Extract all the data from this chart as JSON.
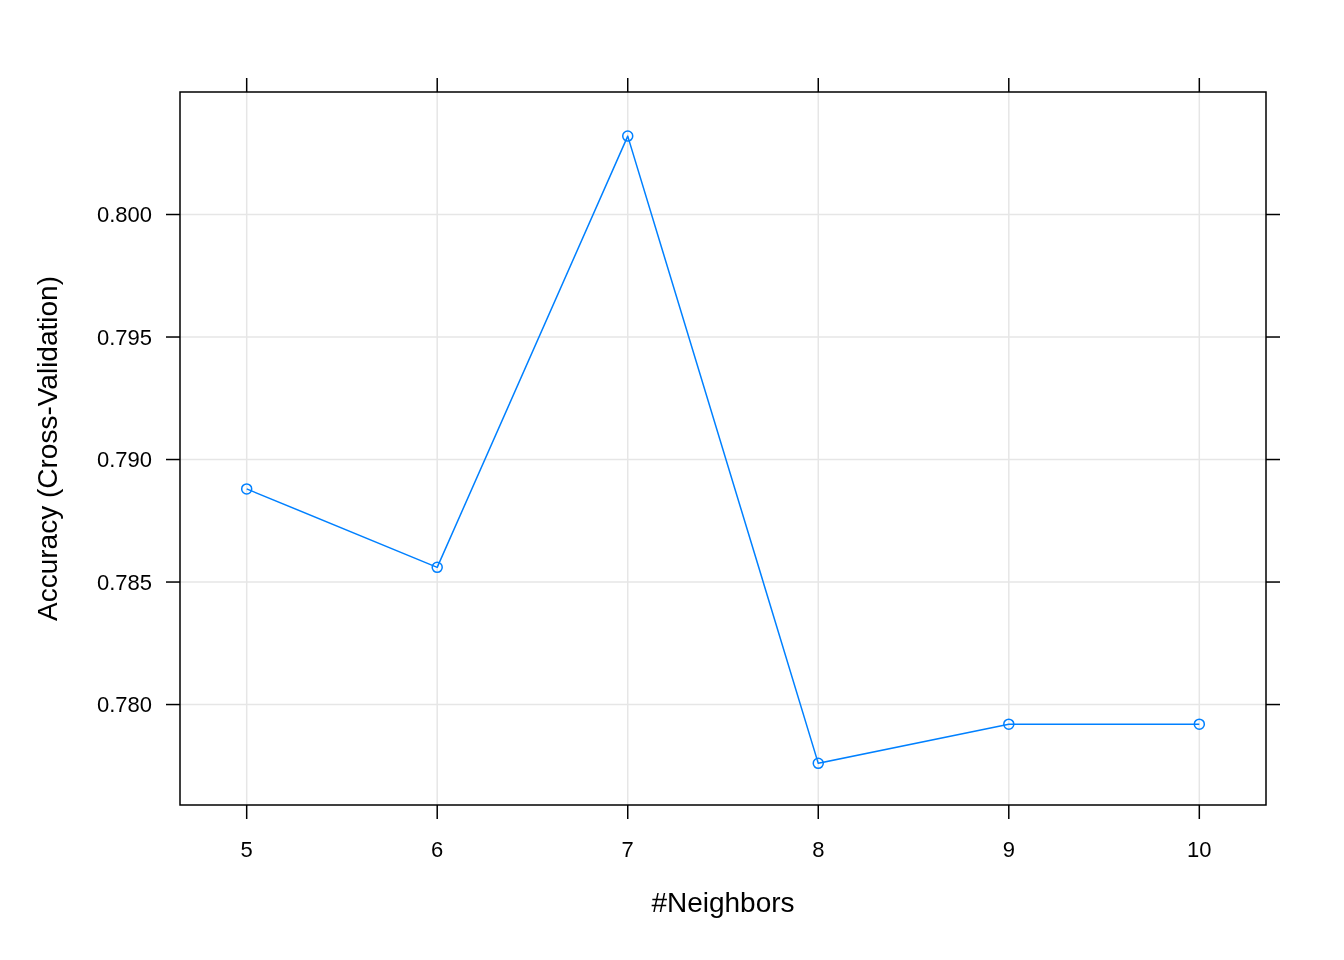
{
  "chart_data": {
    "type": "line",
    "xlabel": "#Neighbors",
    "ylabel": "Accuracy (Cross-Validation)",
    "x": [
      5,
      6,
      7,
      8,
      9,
      10
    ],
    "series": [
      {
        "color": "#0080ff",
        "values": [
          0.7888,
          0.7856,
          0.8032,
          0.7776,
          0.7792,
          0.7792
        ]
      }
    ],
    "xlim": [
      4.65,
      10.35
    ],
    "ylim": [
      0.7759,
      0.805
    ],
    "xticks": [
      5,
      6,
      7,
      8,
      9,
      10
    ],
    "yticks": [
      {
        "value": 0.78,
        "label": "0.780"
      },
      {
        "value": 0.785,
        "label": "0.785"
      },
      {
        "value": 0.79,
        "label": "0.790"
      },
      {
        "value": 0.795,
        "label": "0.795"
      },
      {
        "value": 0.8,
        "label": "0.800"
      }
    ],
    "grid": true,
    "marker": "circle"
  }
}
